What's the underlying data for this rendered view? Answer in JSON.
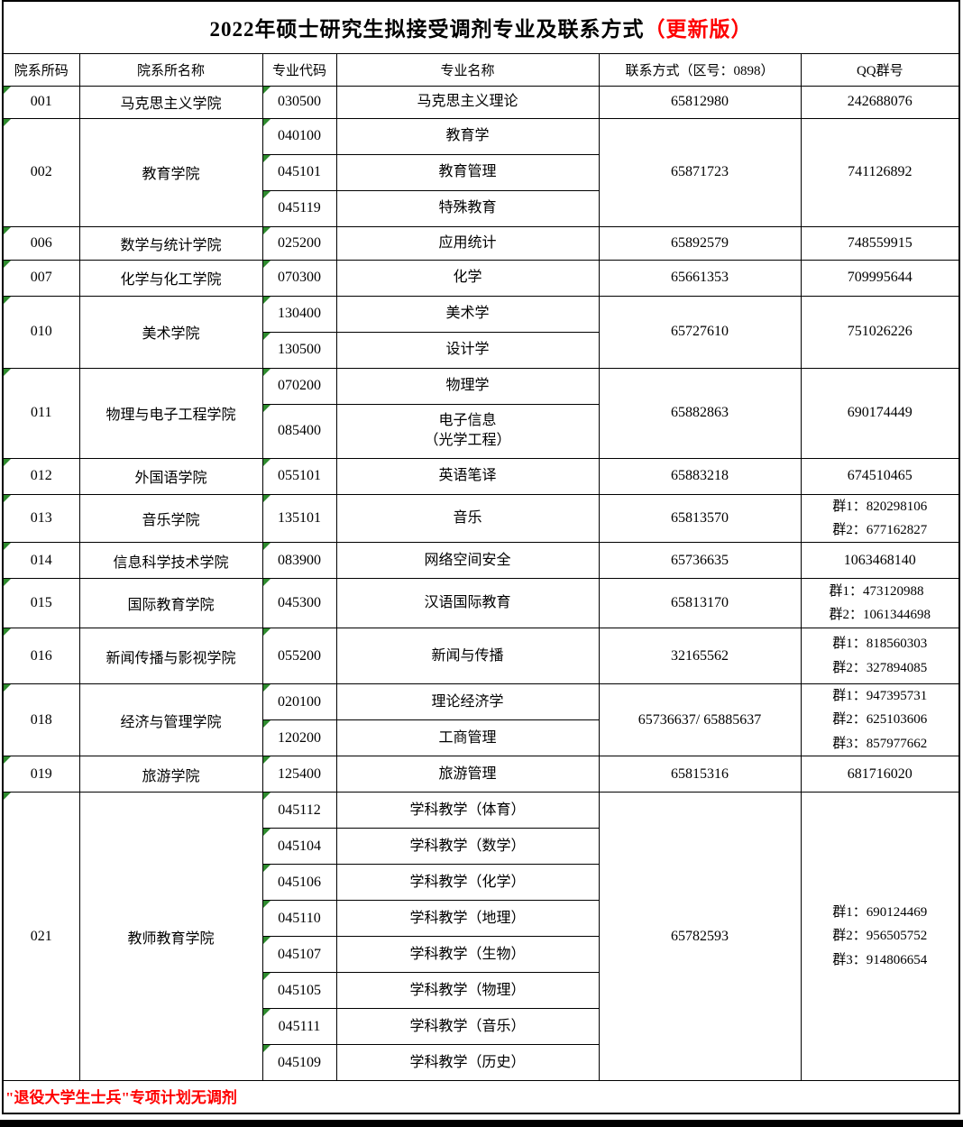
{
  "title": {
    "main": "2022年硕士研究生拟接受调剂专业及联系方式",
    "suffix": "（更新版）"
  },
  "header": {
    "dept_code": "院系所码",
    "dept_name": "院系所名称",
    "major_code": "专业代码",
    "major_name": "专业名称",
    "contact": "联系方式（区号：0898）",
    "qq": "QQ群号"
  },
  "departments": [
    {
      "code": "001",
      "name": "马克思主义学院",
      "majors": [
        {
          "code": "030500",
          "name": "马克思主义理论"
        }
      ],
      "contact": "65812980",
      "qq": [
        "242688076"
      ]
    },
    {
      "code": "002",
      "name": "教育学院",
      "majors": [
        {
          "code": "040100",
          "name": "教育学"
        },
        {
          "code": "045101",
          "name": "教育管理"
        },
        {
          "code": "045119",
          "name": "特殊教育"
        }
      ],
      "contact": "65871723",
      "qq": [
        "741126892"
      ]
    },
    {
      "code": "006",
      "name": "数学与统计学院",
      "majors": [
        {
          "code": "025200",
          "name": "应用统计"
        }
      ],
      "contact": "65892579",
      "qq": [
        "748559915"
      ]
    },
    {
      "code": "007",
      "name": "化学与化工学院",
      "majors": [
        {
          "code": "070300",
          "name": "化学"
        }
      ],
      "contact": "65661353",
      "qq": [
        "709995644"
      ]
    },
    {
      "code": "010",
      "name": "美术学院",
      "majors": [
        {
          "code": "130400",
          "name": "美术学"
        },
        {
          "code": "130500",
          "name": "设计学"
        }
      ],
      "contact": "65727610",
      "qq": [
        "751026226"
      ]
    },
    {
      "code": "011",
      "name": "物理与电子工程学院",
      "majors": [
        {
          "code": "070200",
          "name": "物理学"
        },
        {
          "code": "085400",
          "name": "电子信息\n（光学工程）"
        }
      ],
      "contact": "65882863",
      "qq": [
        "690174449"
      ]
    },
    {
      "code": "012",
      "name": "外国语学院",
      "majors": [
        {
          "code": "055101",
          "name": "英语笔译"
        }
      ],
      "contact": "65883218",
      "qq": [
        "674510465"
      ]
    },
    {
      "code": "013",
      "name": "音乐学院",
      "majors": [
        {
          "code": "135101",
          "name": "音乐"
        }
      ],
      "contact": "65813570",
      "qq": [
        "群1：820298106",
        "群2：677162827"
      ]
    },
    {
      "code": "014",
      "name": "信息科学技术学院",
      "majors": [
        {
          "code": "083900",
          "name": "网络空间安全"
        }
      ],
      "contact": "65736635",
      "qq": [
        "1063468140"
      ]
    },
    {
      "code": "015",
      "name": "国际教育学院",
      "majors": [
        {
          "code": "045300",
          "name": "汉语国际教育"
        }
      ],
      "contact": "65813170",
      "qq": [
        "群1：473120988",
        "群2：1061344698"
      ]
    },
    {
      "code": "016",
      "name": "新闻传播与影视学院",
      "majors": [
        {
          "code": "055200",
          "name": "新闻与传播"
        }
      ],
      "contact": "32165562",
      "qq": [
        "群1：818560303",
        "群2：327894085"
      ]
    },
    {
      "code": "018",
      "name": "经济与管理学院",
      "majors": [
        {
          "code": "020100",
          "name": "理论经济学"
        },
        {
          "code": "120200",
          "name": "工商管理"
        }
      ],
      "contact": "65736637/ 65885637",
      "qq": [
        "群1：947395731",
        "群2：625103606",
        "群3：857977662"
      ]
    },
    {
      "code": "019",
      "name": "旅游学院",
      "majors": [
        {
          "code": "125400",
          "name": "旅游管理"
        }
      ],
      "contact": "65815316",
      "qq": [
        "681716020"
      ]
    },
    {
      "code": "021",
      "name": "教师教育学院",
      "majors": [
        {
          "code": "045112",
          "name": "学科教学（体育）"
        },
        {
          "code": "045104",
          "name": "学科教学（数学）"
        },
        {
          "code": "045106",
          "name": "学科教学（化学）"
        },
        {
          "code": "045110",
          "name": "学科教学（地理）"
        },
        {
          "code": "045107",
          "name": "学科教学（生物）"
        },
        {
          "code": "045105",
          "name": "学科教学（物理）"
        },
        {
          "code": "045111",
          "name": "学科教学（音乐）"
        },
        {
          "code": "045109",
          "name": "学科教学（历史）"
        }
      ],
      "contact": "65782593",
      "qq": [
        "群1：690124469",
        "群2：956505752",
        "群3：914806654"
      ]
    }
  ],
  "footer": {
    "note": "\"退役大学生士兵\"专项计划无调剂"
  },
  "colors": {
    "accent_red": "#ff0000",
    "marker_green": "#2e8b2e",
    "border_black": "#000000"
  }
}
